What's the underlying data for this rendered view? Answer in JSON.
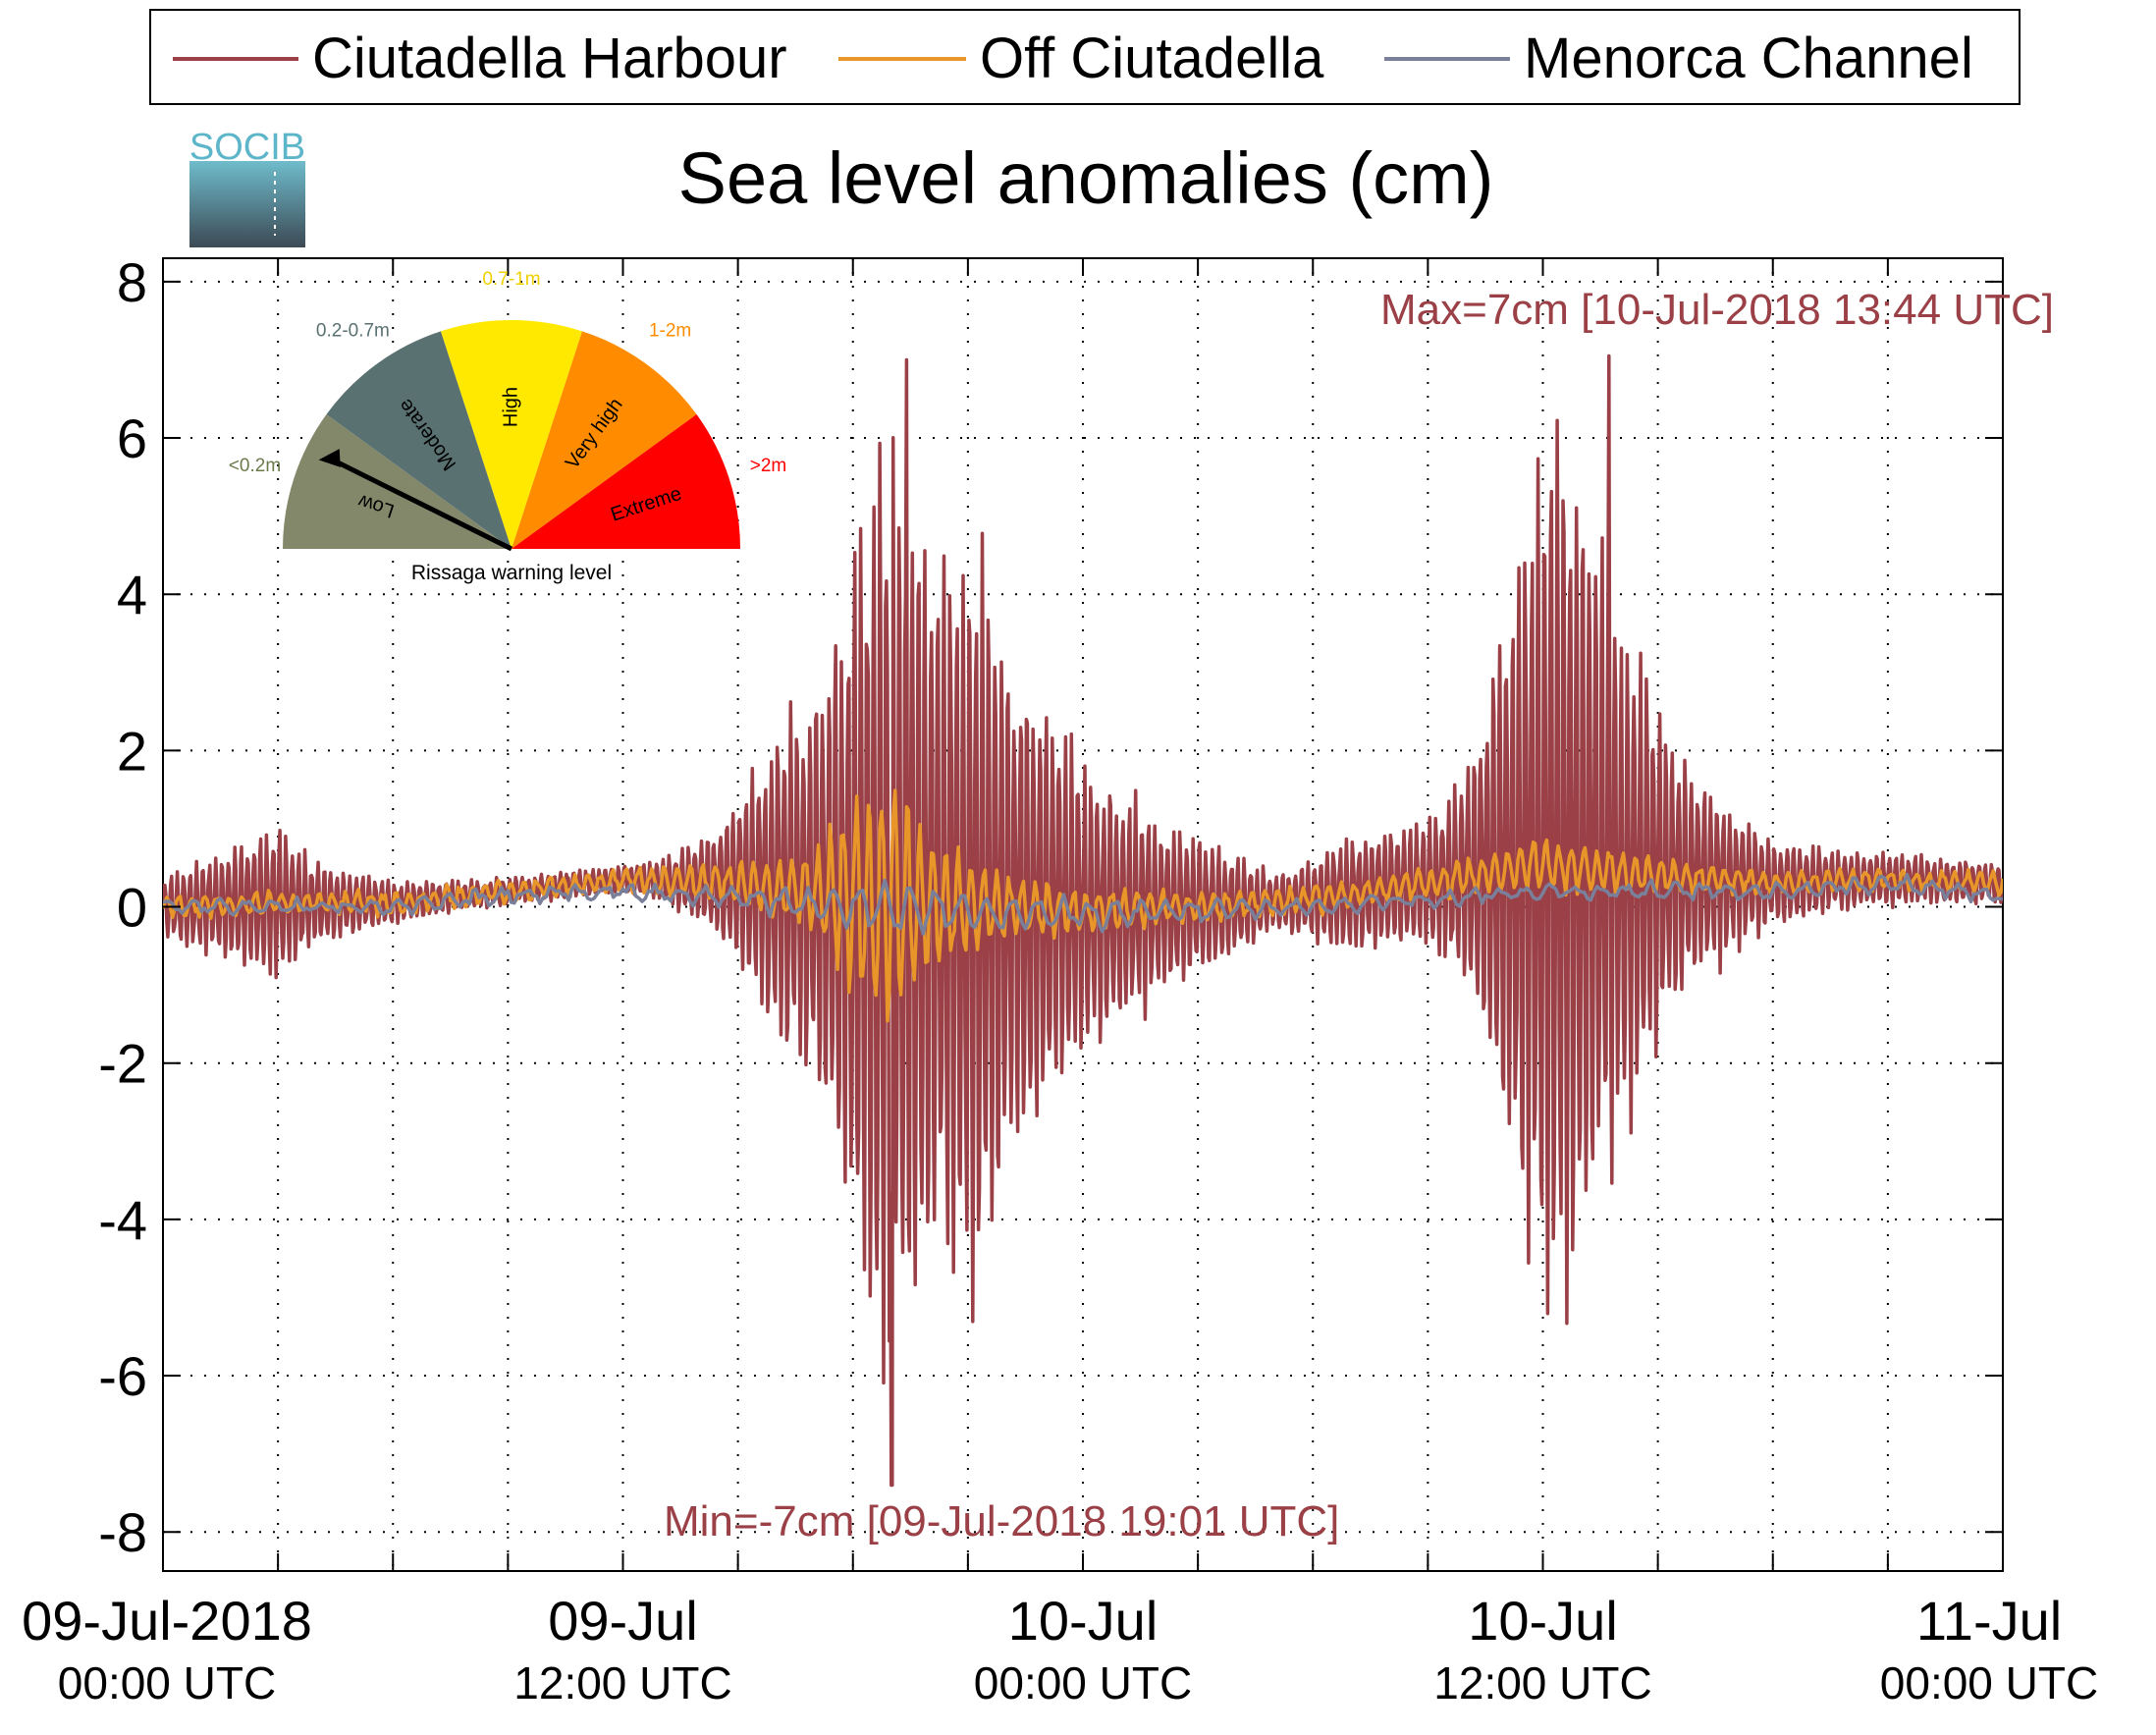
{
  "chart_data": {
    "type": "line",
    "title": "Sea level anomalies (cm)",
    "xlabel": "",
    "ylabel": "",
    "logo_text": "SOCIB",
    "ylim": [
      -8.5,
      8.3
    ],
    "yticks": [
      -8,
      -6,
      -4,
      -2,
      0,
      2,
      4,
      6,
      8
    ],
    "xlim": [
      0,
      48
    ],
    "xticks": [
      {
        "hour": 0,
        "date": "09-Jul-2018",
        "time": "00:00 UTC"
      },
      {
        "hour": 12,
        "date": "09-Jul",
        "time": "12:00 UTC"
      },
      {
        "hour": 24,
        "date": "10-Jul",
        "time": "00:00 UTC"
      },
      {
        "hour": 36,
        "date": "10-Jul",
        "time": "12:00 UTC"
      },
      {
        "hour": 48,
        "date": "11-Jul",
        "time": "00:00 UTC"
      }
    ],
    "minor_xticks_hours": [
      3,
      6,
      9,
      15,
      18,
      21,
      27,
      30,
      33,
      39,
      42,
      45
    ],
    "grid": true,
    "legend_position": "top",
    "series": [
      {
        "name": "Ciutadella Harbour",
        "color": "#9a4046",
        "envelope_hours": [
          0,
          2,
          3,
          4,
          6,
          8,
          10,
          12,
          13,
          14,
          15,
          16,
          17,
          17.5,
          18,
          18.5,
          19,
          19.5,
          20,
          21,
          22,
          23,
          24,
          25,
          26,
          27,
          28,
          29,
          30,
          31,
          33,
          34,
          34.5,
          35,
          35.5,
          36,
          36.5,
          37,
          38,
          39,
          40,
          41,
          42,
          44,
          46,
          48
        ],
        "envelope_amplitude_cm": [
          0.4,
          0.9,
          1.1,
          0.6,
          0.3,
          0.2,
          0.2,
          0.2,
          0.3,
          0.6,
          1.2,
          2.3,
          2.8,
          3.5,
          5.0,
          6.5,
          7.1,
          6.0,
          5.2,
          5.6,
          4.0,
          3.0,
          2.2,
          1.7,
          1.3,
          1.0,
          0.7,
          0.4,
          0.6,
          0.8,
          0.9,
          1.5,
          2.5,
          3.8,
          5.2,
          6.2,
          6.8,
          5.5,
          4.0,
          2.5,
          1.5,
          1.0,
          0.6,
          0.4,
          0.35,
          0.3
        ],
        "max_value_cm": 7,
        "max_time": "10-Jul-2018 13:44 UTC",
        "min_value_cm": -7,
        "min_time": "09-Jul-2018 19:01 UTC",
        "period_minutes": 10
      },
      {
        "name": "Off Ciutadella",
        "color": "#e8962a",
        "envelope_hours": [
          0,
          6,
          12,
          15,
          17,
          18,
          19,
          20,
          22,
          24,
          28,
          32,
          35,
          36,
          38,
          40,
          44,
          48
        ],
        "envelope_amplitude_cm": [
          0.15,
          0.15,
          0.15,
          0.3,
          0.6,
          1.5,
          2.0,
          1.0,
          0.5,
          0.3,
          0.2,
          0.2,
          0.3,
          0.4,
          0.3,
          0.2,
          0.15,
          0.15
        ],
        "period_minutes": 20
      },
      {
        "name": "Menorca Channel",
        "color": "#7a7f9a",
        "envelope_hours": [
          0,
          12,
          17,
          19,
          21,
          24,
          30,
          36,
          42,
          48
        ],
        "envelope_amplitude_cm": [
          0.1,
          0.1,
          0.2,
          0.4,
          0.25,
          0.2,
          0.1,
          0.1,
          0.1,
          0.1
        ],
        "period_minutes": 40
      }
    ],
    "baseline_hours": [
      0,
      3,
      6,
      9,
      12,
      15,
      18,
      21,
      24,
      27,
      30,
      33,
      36,
      39,
      42,
      45,
      48
    ],
    "baseline_cm": [
      0.0,
      0.05,
      0.05,
      0.2,
      0.35,
      0.3,
      0.1,
      0.0,
      -0.05,
      0.0,
      0.1,
      0.3,
      0.55,
      0.4,
      0.3,
      0.35,
      0.3
    ],
    "channel_baseline_cm": [
      0.0,
      0.0,
      0.0,
      0.15,
      0.2,
      0.1,
      0.0,
      -0.05,
      -0.1,
      -0.05,
      0.0,
      0.1,
      0.2,
      0.2,
      0.2,
      0.3,
      0.15
    ],
    "annotations": {
      "max_label": "Max=7cm [10-Jul-2018 13:44 UTC]",
      "min_label": "Min=-7cm [09-Jul-2018 19:01 UTC]"
    },
    "gauge": {
      "caption": "Rissaga warning level",
      "needle_level": "Low",
      "levels": [
        {
          "name": "Low",
          "range": "<0.2m",
          "color": "#84886a",
          "range_color": "#6b7a4a"
        },
        {
          "name": "Moderate",
          "range": "0.2-0.7m",
          "color": "#5a7172",
          "range_color": "#5a7172"
        },
        {
          "name": "High",
          "range": "0.7-1m",
          "color": "#ffe900",
          "range_color": "#f0d000"
        },
        {
          "name": "Very high",
          "range": "1-2m",
          "color": "#ff8c00",
          "range_color": "#ff8c00"
        },
        {
          "name": "Extreme",
          "range": ">2m",
          "color": "#ff0000",
          "range_color": "#ff0000"
        }
      ]
    }
  }
}
